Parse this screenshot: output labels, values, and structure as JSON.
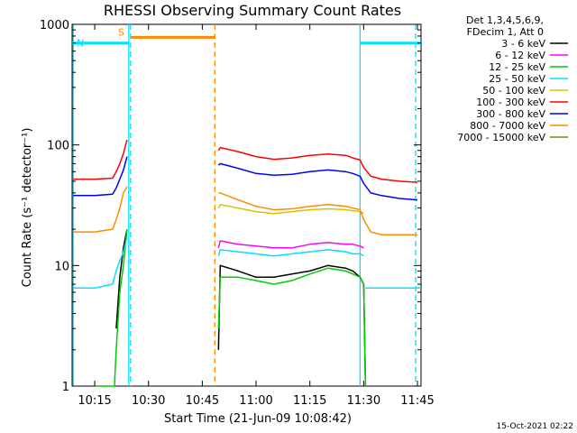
{
  "chart_data": {
    "type": "line",
    "title": "RHESSI Observing Summary Count Rates",
    "xlabel": "Start Time (21-Jun-09 10:08:42)",
    "ylabel": "Count Rate (s⁻¹ detector⁻¹)",
    "yscale": "log",
    "ylim": [
      1,
      1000
    ],
    "xlim": [
      "10:08:42",
      "11:46:00"
    ],
    "x_ticks": [
      "10:15",
      "10:30",
      "10:45",
      "11:00",
      "11:15",
      "11:30",
      "11:45"
    ],
    "y_ticks": [
      "1",
      "10",
      "100",
      "1000"
    ],
    "grid": false,
    "legend": {
      "placement": "right",
      "header": [
        "Det 1,3,4,5,6,9,",
        "FDecim 1, Att 0"
      ]
    },
    "flags": [
      {
        "label": "S",
        "color": "#ff8c00",
        "start": "10:25:00",
        "end": "10:48:30"
      },
      {
        "label": "N",
        "color": "#00e0ff",
        "start": "10:08:42",
        "end": "10:24:30"
      },
      {
        "label": "",
        "color": "#00e0ff",
        "start": "11:29:00",
        "end": "11:46:00"
      }
    ],
    "vlines": [
      {
        "x": "10:09:00",
        "color": "#00e0ff",
        "style": "solid"
      },
      {
        "x": "10:24:30",
        "color": "#00e0ff",
        "style": "solid"
      },
      {
        "x": "10:25:00",
        "color": "#00e0ff",
        "style": "dashed"
      },
      {
        "x": "10:48:30",
        "color": "#ff8c00",
        "style": "dashed"
      },
      {
        "x": "11:29:00",
        "color": "#00e0ff",
        "style": "solid"
      },
      {
        "x": "11:44:30",
        "color": "#00e0ff",
        "style": "dashed"
      }
    ],
    "series": [
      {
        "name": "3 - 6 keV",
        "color": "#000000",
        "segments": [
          {
            "x": [
              "10:21:00",
              "10:22:00",
              "10:23:00",
              "10:24:00"
            ],
            "y": [
              3,
              8,
              14,
              20
            ]
          },
          {
            "x": [
              "10:49:30",
              "10:50:00",
              "10:55:00",
              "11:00:00",
              "11:05:00",
              "11:10:00",
              "11:15:00",
              "11:20:00",
              "11:25:00",
              "11:27:00",
              "11:29:00",
              "11:30:00",
              "11:30:30"
            ],
            "y": [
              2,
              10,
              9,
              8,
              8,
              8.5,
              9,
              10,
              9.5,
              9,
              8,
              7,
              1
            ]
          }
        ]
      },
      {
        "name": "6 - 12 keV",
        "color": "#ff00ff",
        "segments": [
          {
            "x": [
              "10:49:30",
              "10:50:00",
              "10:55:00",
              "11:00:00",
              "11:05:00",
              "11:10:00",
              "11:15:00",
              "11:20:00",
              "11:25:00",
              "11:27:00",
              "11:29:00",
              "11:30:00"
            ],
            "y": [
              14,
              16,
              15,
              14.5,
              14,
              14,
              15,
              15.5,
              15,
              15,
              14.5,
              14
            ]
          }
        ]
      },
      {
        "name": "12 - 25 keV",
        "color": "#00cc00",
        "segments": [
          {
            "x": [
              "10:15:00",
              "10:20:30",
              "10:21:00",
              "10:22:00",
              "10:23:00",
              "10:24:00"
            ],
            "y": [
              1,
              1,
              2,
              6,
              10,
              20
            ]
          },
          {
            "x": [
              "10:49:30",
              "10:50:00",
              "10:55:00",
              "11:00:00",
              "11:05:00",
              "11:10:00",
              "11:15:00",
              "11:20:00",
              "11:25:00",
              "11:27:00",
              "11:29:00",
              "11:30:00",
              "11:30:30"
            ],
            "y": [
              3,
              8,
              8,
              7.5,
              7,
              7.5,
              8.5,
              9.5,
              9,
              8.5,
              8,
              7,
              1
            ]
          }
        ]
      },
      {
        "name": "25 - 50 keV",
        "color": "#00e0ff",
        "segments": [
          {
            "x": [
              "10:09:00",
              "10:15:00",
              "10:20:00",
              "10:21:00",
              "10:22:00",
              "10:23:00",
              "10:24:00"
            ],
            "y": [
              6.5,
              6.5,
              7,
              9,
              11,
              13,
              17
            ]
          },
          {
            "x": [
              "10:49:30",
              "10:50:00",
              "10:55:00",
              "11:00:00",
              "11:05:00",
              "11:10:00",
              "11:15:00",
              "11:20:00",
              "11:25:00",
              "11:27:00",
              "11:29:00",
              "11:30:00"
            ],
            "y": [
              12,
              13.5,
              13,
              12.5,
              12,
              12.5,
              13,
              13.5,
              13,
              12.5,
              12.5,
              12
            ]
          },
          {
            "x": [
              "11:30:30",
              "11:35:00",
              "11:40:00",
              "11:46:00"
            ],
            "y": [
              6.5,
              6.5,
              6.5,
              6.5
            ]
          }
        ]
      },
      {
        "name": "50 - 100 keV",
        "color": "#d4c400",
        "segments": [
          {
            "x": [
              "10:49:30",
              "10:50:00",
              "10:55:00",
              "11:00:00",
              "11:05:00",
              "11:10:00",
              "11:15:00",
              "11:20:00",
              "11:25:00",
              "11:27:00",
              "11:29:00",
              "11:30:00"
            ],
            "y": [
              30,
              32,
              30,
              28,
              27,
              28,
              29,
              29.5,
              29,
              28.5,
              28,
              27
            ]
          }
        ]
      },
      {
        "name": "100 - 300 keV",
        "color": "#ff0000",
        "segments": [
          {
            "x": [
              "10:09:00",
              "10:15:00",
              "10:20:00",
              "10:21:00",
              "10:22:00",
              "10:23:00",
              "10:24:00"
            ],
            "y": [
              52,
              52,
              53,
              60,
              70,
              85,
              110
            ]
          },
          {
            "x": [
              "10:49:30",
              "10:50:00",
              "10:55:00",
              "11:00:00",
              "11:05:00",
              "11:10:00",
              "11:15:00",
              "11:20:00",
              "11:25:00",
              "11:27:00",
              "11:29:00",
              "11:30:00",
              "11:32:00",
              "11:35:00",
              "11:40:00",
              "11:45:00"
            ],
            "y": [
              90,
              95,
              88,
              80,
              76,
              78,
              82,
              84,
              82,
              78,
              75,
              65,
              55,
              52,
              50,
              49
            ]
          }
        ]
      },
      {
        "name": "300 - 800 keV",
        "color": "#0000ff",
        "segments": [
          {
            "x": [
              "10:09:00",
              "10:15:00",
              "10:20:00",
              "10:21:00",
              "10:22:00",
              "10:23:00",
              "10:24:00"
            ],
            "y": [
              38,
              38,
              39,
              44,
              52,
              62,
              80
            ]
          },
          {
            "x": [
              "10:49:30",
              "10:50:00",
              "10:55:00",
              "11:00:00",
              "11:05:00",
              "11:10:00",
              "11:15:00",
              "11:20:00",
              "11:25:00",
              "11:27:00",
              "11:29:00",
              "11:30:00",
              "11:32:00",
              "11:35:00",
              "11:40:00",
              "11:45:00"
            ],
            "y": [
              68,
              70,
              64,
              58,
              56,
              57,
              60,
              62,
              60,
              58,
              55,
              48,
              40,
              38,
              36,
              35
            ]
          }
        ]
      },
      {
        "name": "800 - 7000 keV",
        "color": "#ff8c00",
        "segments": [
          {
            "x": [
              "10:09:00",
              "10:15:00",
              "10:20:00",
              "10:21:00",
              "10:22:00",
              "10:23:00",
              "10:24:00"
            ],
            "y": [
              19,
              19,
              20,
              24,
              30,
              40,
              45
            ]
          },
          {
            "x": [
              "10:49:30",
              "10:50:00",
              "10:55:00",
              "11:00:00",
              "11:05:00",
              "11:10:00",
              "11:15:00",
              "11:20:00",
              "11:25:00",
              "11:27:00",
              "11:29:00",
              "11:30:00",
              "11:32:00",
              "11:35:00",
              "11:40:00",
              "11:45:00"
            ],
            "y": [
              40,
              40,
              35,
              31,
              29,
              29.5,
              31,
              32,
              31,
              30,
              29,
              24,
              19,
              18,
              18,
              18
            ]
          }
        ]
      },
      {
        "name": "7000 - 15000 keV",
        "color": "#6b8e23",
        "segments": []
      }
    ]
  },
  "timestamp": "15-Oct-2021 02:22"
}
